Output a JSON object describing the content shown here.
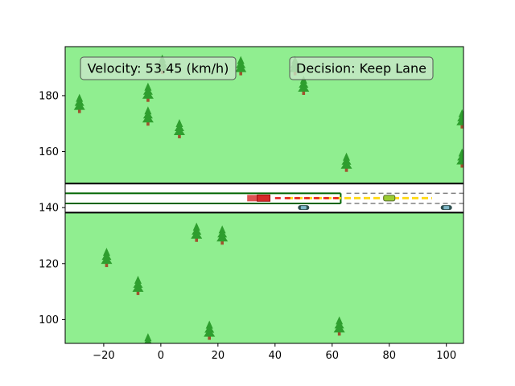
{
  "hud": {
    "velocity_text": "Velocity: 53.45 (km/h)",
    "decision_text": "Decision: Keep Lane"
  },
  "colors": {
    "grass": "#90ee90",
    "road": "#ffffff",
    "tree_foliage": "#2e9e2e",
    "tree_trunk": "#a0522d",
    "ego_vehicle": "#d62728",
    "planned_path": "#e41a1c",
    "alt_path": "#ffd700",
    "other_vehicle": "#2f4f4f",
    "lead_vehicle": "#9acd32",
    "box_face": "#c8e6c8"
  },
  "chart_data": {
    "type": "scatter",
    "title": "",
    "xlabel": "",
    "ylabel": "",
    "xlim": [
      -33.5,
      106
    ],
    "ylim": [
      91.5,
      197.5
    ],
    "xticks": [
      -20,
      0,
      20,
      40,
      60,
      80,
      100
    ],
    "yticks": [
      100,
      120,
      140,
      160,
      180
    ],
    "grid": false,
    "road": {
      "outer_lines_y": [
        138.2,
        148.6
      ],
      "lane_lines_y": [
        141.5,
        145.1
      ],
      "solid_lane_end_x": 63,
      "dashed_lane_start_x": 65
    },
    "ego": {
      "x": 36,
      "y": 143.4
    },
    "ego_trail": [
      {
        "x": 32.5,
        "y": 143.4
      }
    ],
    "planned_path_x": [
      40,
      63
    ],
    "alt_path_x": [
      44,
      95
    ],
    "lead_vehicle": {
      "x": 80,
      "y": 143.4
    },
    "other_vehicles": [
      {
        "x": 50,
        "y": 140
      },
      {
        "x": 100,
        "y": 140
      }
    ],
    "trees": [
      {
        "x": -28.5,
        "y": 177.5
      },
      {
        "x": 0.5,
        "y": 191.5
      },
      {
        "x": 28,
        "y": 191
      },
      {
        "x": 47,
        "y": 191
      },
      {
        "x": -4.5,
        "y": 181.5
      },
      {
        "x": 50,
        "y": 184
      },
      {
        "x": -4.5,
        "y": 173
      },
      {
        "x": 6.5,
        "y": 168.5
      },
      {
        "x": 105.5,
        "y": 172
      },
      {
        "x": 65,
        "y": 156.5
      },
      {
        "x": 105.5,
        "y": 158
      },
      {
        "x": 12.5,
        "y": 131.5
      },
      {
        "x": 21.5,
        "y": 130.5
      },
      {
        "x": -19,
        "y": 122.5
      },
      {
        "x": -8,
        "y": 112.5
      },
      {
        "x": 17,
        "y": 96.5
      },
      {
        "x": -4.5,
        "y": 92
      },
      {
        "x": 62.5,
        "y": 98
      }
    ]
  }
}
